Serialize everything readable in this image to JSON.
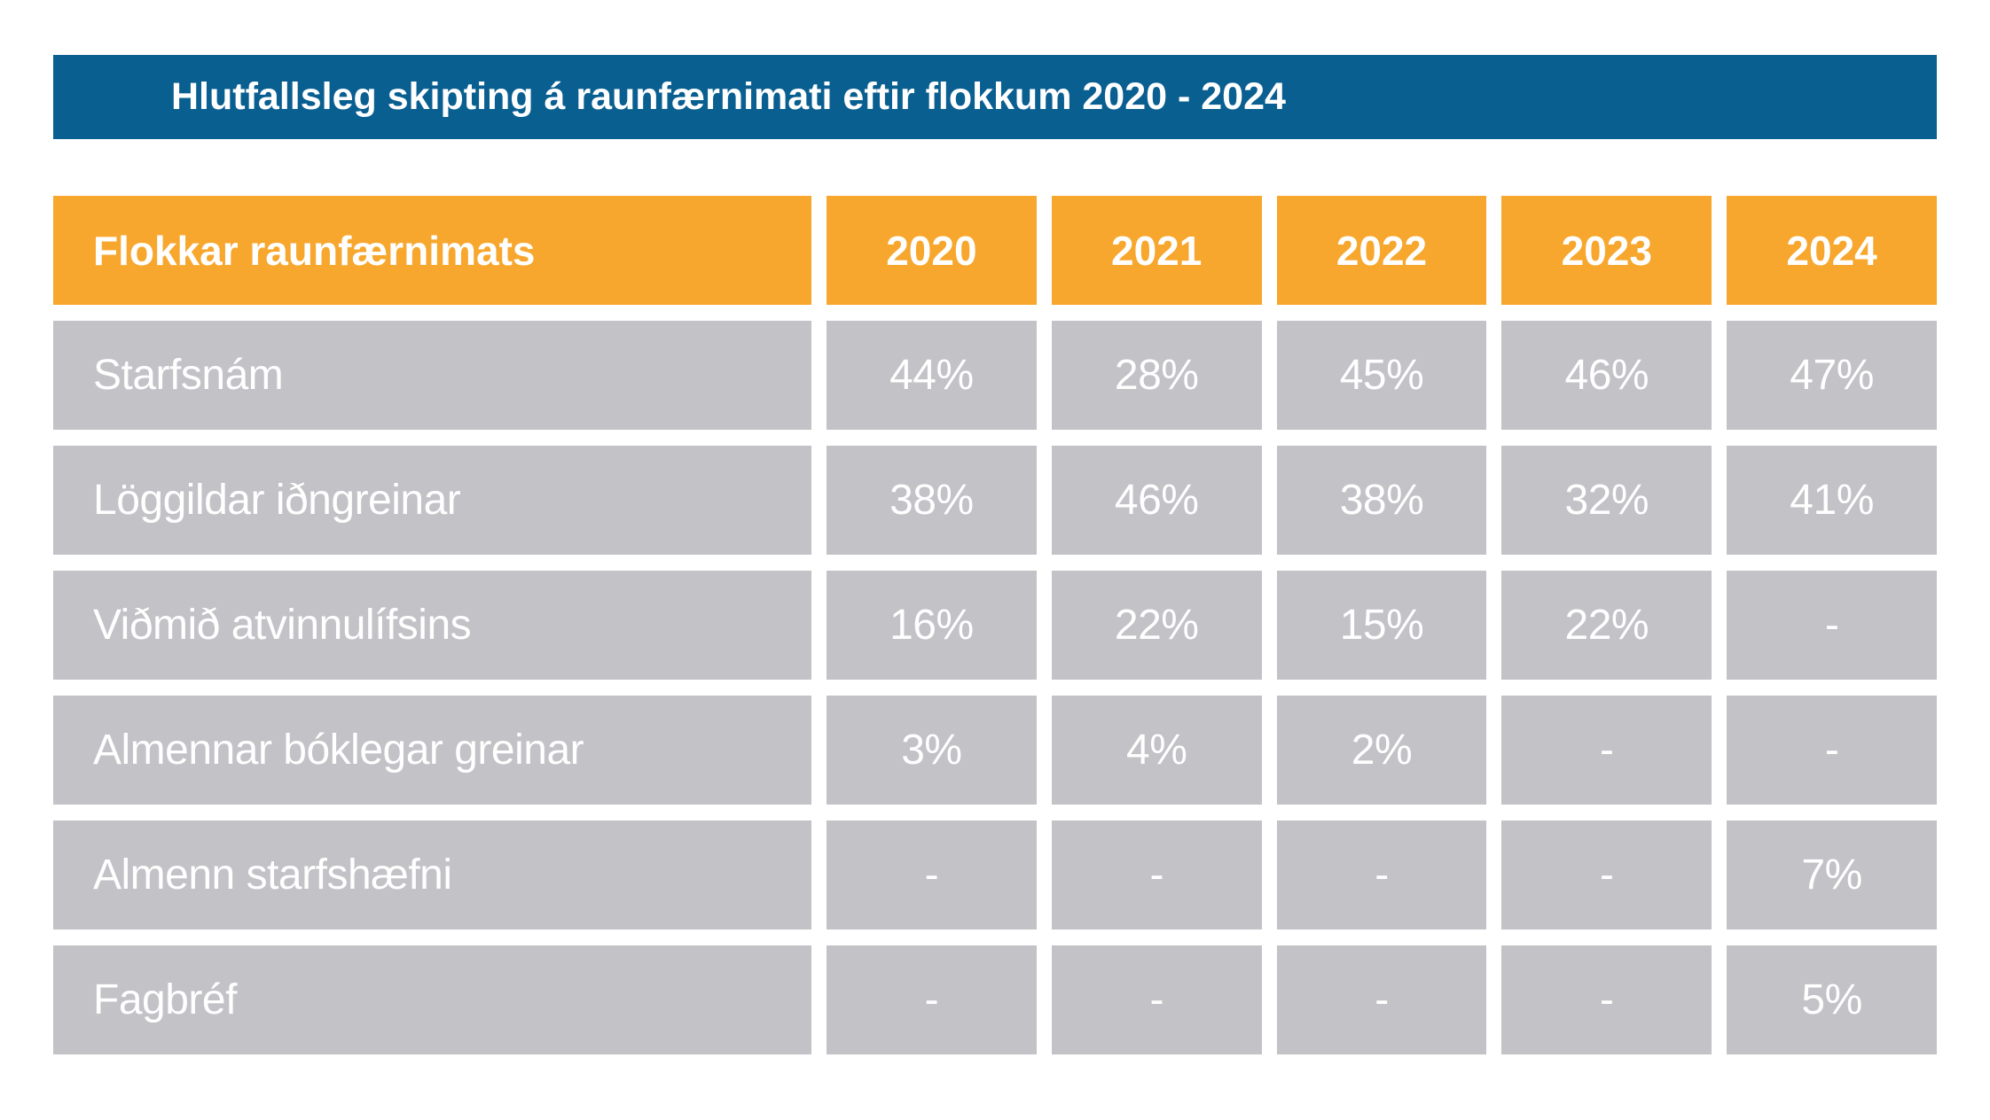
{
  "title": "Hlutfallsleg skipting á raunfærnimati eftir flokkum 2020 - 2024",
  "colors": {
    "title_bar": "#0a5f91",
    "header": "#f7a72d",
    "cell": "#c2c2c7",
    "text": "#ffffff"
  },
  "table": {
    "label_header": "Flokkar raunfærnimats",
    "year_headers": [
      "2020",
      "2021",
      "2022",
      "2023",
      "2024"
    ],
    "rows": [
      {
        "label": "Starfsnám",
        "values": [
          "44%",
          "28%",
          "45%",
          "46%",
          "47%"
        ]
      },
      {
        "label": "Löggildar iðngreinar",
        "values": [
          "38%",
          "46%",
          "38%",
          "32%",
          "41%"
        ]
      },
      {
        "label": "Viðmið atvinnulífsins",
        "values": [
          "16%",
          "22%",
          "15%",
          "22%",
          "-"
        ]
      },
      {
        "label": "Almennar bóklegar greinar",
        "values": [
          "3%",
          "4%",
          "2%",
          "-",
          "-"
        ]
      },
      {
        "label": "Almenn starfshæfni",
        "values": [
          "-",
          "-",
          "-",
          "-",
          "7%"
        ]
      },
      {
        "label": "Fagbréf",
        "values": [
          "-",
          "-",
          "-",
          "-",
          "5%"
        ]
      }
    ]
  },
  "chart_data": {
    "type": "table",
    "title": "Hlutfallsleg skipting á raunfærnimati eftir flokkum 2020 - 2024",
    "columns": [
      "Flokkar raunfærnimats",
      "2020",
      "2021",
      "2022",
      "2023",
      "2024"
    ],
    "categories": [
      "2020",
      "2021",
      "2022",
      "2023",
      "2024"
    ],
    "series": [
      {
        "name": "Starfsnám",
        "values": [
          44,
          28,
          45,
          46,
          47
        ]
      },
      {
        "name": "Löggildar iðngreinar",
        "values": [
          38,
          46,
          38,
          32,
          41
        ]
      },
      {
        "name": "Viðmið atvinnulífsins",
        "values": [
          16,
          22,
          15,
          22,
          null
        ]
      },
      {
        "name": "Almennar bóklegar greinar",
        "values": [
          3,
          4,
          2,
          null,
          null
        ]
      },
      {
        "name": "Almenn starfshæfni",
        "values": [
          null,
          null,
          null,
          null,
          7
        ]
      },
      {
        "name": "Fagbréf",
        "values": [
          null,
          null,
          null,
          null,
          5
        ]
      }
    ],
    "unit": "%",
    "missing_marker": "-"
  }
}
